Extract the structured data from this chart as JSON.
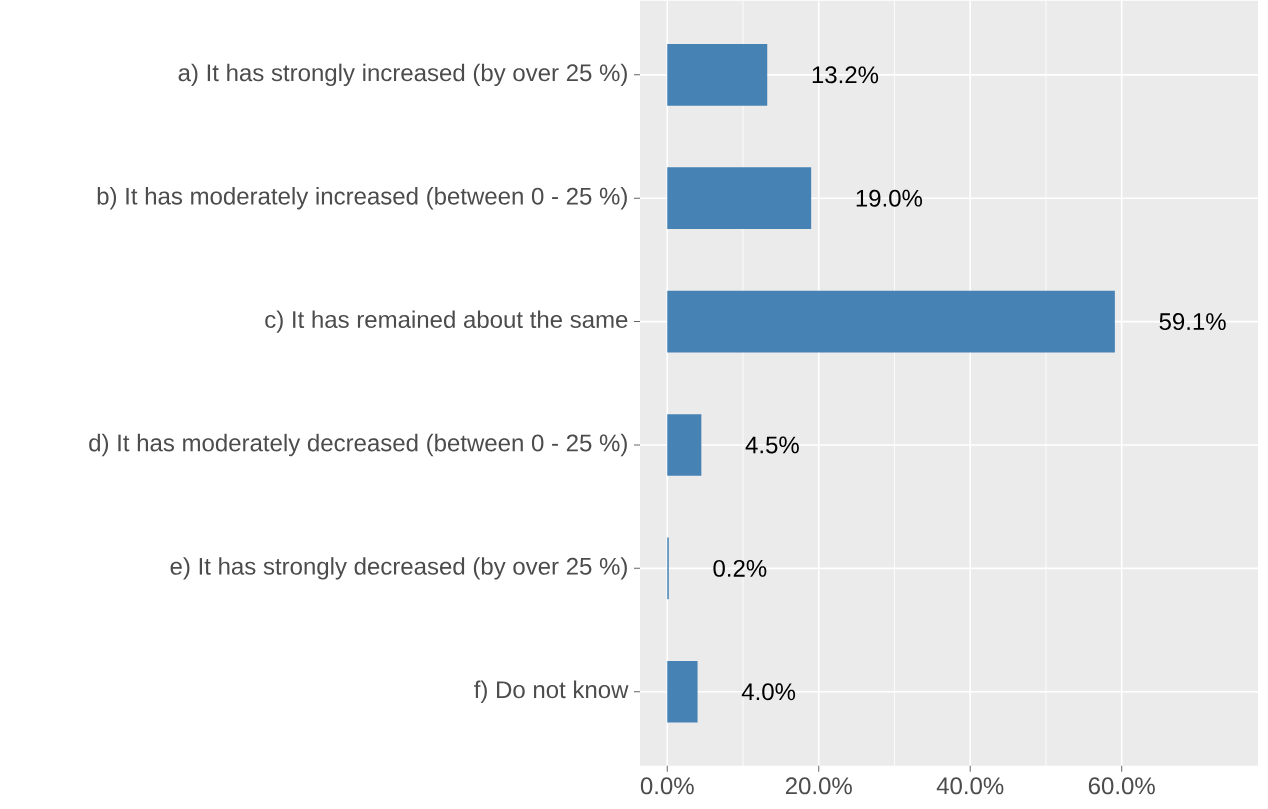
{
  "chart_data": {
    "type": "bar",
    "orientation": "horizontal",
    "categories": [
      "a) It has strongly increased (by over 25 %)",
      "b) It has moderately increased (between 0 - 25 %)",
      "c) It has remained about the same",
      "d) It has moderately decreased (between 0 - 25 %)",
      "e) It has strongly decreased (by over 25 %)",
      "f) Do not know"
    ],
    "values": [
      13.2,
      19.0,
      59.1,
      4.5,
      0.2,
      4.0
    ],
    "value_labels": [
      "13.2%",
      "19.0%",
      "59.1%",
      "4.5%",
      "0.2%",
      "4.0%"
    ],
    "color": "#4682b4",
    "xlim": [
      -3.6,
      78
    ],
    "xticks": [
      {
        "value": 0,
        "label": "0.0%"
      },
      {
        "value": 20,
        "label": "20.0%"
      },
      {
        "value": 40,
        "label": "40.0%"
      },
      {
        "value": 60,
        "label": "60.0%"
      }
    ],
    "grid": true
  }
}
